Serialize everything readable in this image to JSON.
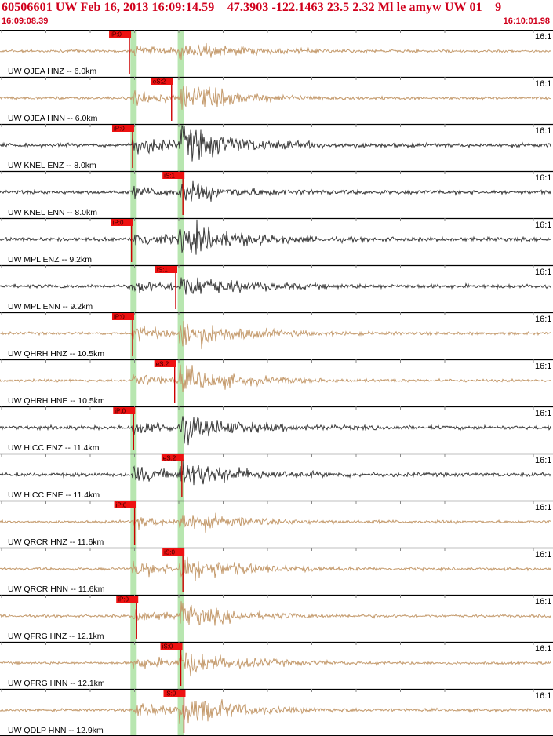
{
  "header": {
    "title": "60506601 UW Feb 16, 2013 16:09:14.59    47.3903 -122.1463 23.5 2.32 Ml le amyw UW 01    9",
    "time_start": "16:09:08.39",
    "time_end": "16:10:01.98"
  },
  "time_axis": {
    "start_sec": 0,
    "end_sec": 53.59
  },
  "colors": {
    "title": "#d0001c",
    "pick_flag": "#ee1111",
    "pick_line": "#cc0000",
    "highlight_band": "#b8e6b0",
    "trace_strong_motion": "#c49a6c",
    "trace_broadband": "#3a3a3a",
    "divider": "#000000",
    "minute_tick": "#888888"
  },
  "highlight_bands_sec": [
    13.0,
    17.6
  ],
  "right_label": "16:1",
  "traces": [
    {
      "label": "UW QJEA HNZ -- 6.0km",
      "type": "strong",
      "pick": "iP:0",
      "pick_sec": 12.6,
      "amp": 0.35
    },
    {
      "label": "UW QJEA HNN -- 6.0km",
      "type": "strong",
      "pick": "eS:2",
      "pick_sec": 16.7,
      "amp": 0.55
    },
    {
      "label": "UW KNEL ENZ -- 8.0km",
      "type": "dark",
      "pick": "iP:0",
      "pick_sec": 12.9,
      "amp": 0.7
    },
    {
      "label": "UW KNEL ENN -- 8.0km",
      "type": "dark",
      "pick": "iS:1",
      "pick_sec": 17.8,
      "amp": 0.35
    },
    {
      "label": "UW MPL ENZ -- 9.2km",
      "type": "dark",
      "pick": "iP:0",
      "pick_sec": 12.8,
      "amp": 0.6
    },
    {
      "label": "UW MPL ENN -- 9.2km",
      "type": "dark",
      "pick": "iS:1",
      "pick_sec": 17.1,
      "amp": 0.45
    },
    {
      "label": "UW QHRH HNZ -- 10.5km",
      "type": "strong",
      "pick": "iP:0",
      "pick_sec": 12.9,
      "amp": 0.6
    },
    {
      "label": "UW QHRH HNE -- 10.5km",
      "type": "strong",
      "pick": "eS:2",
      "pick_sec": 17.0,
      "amp": 0.5
    },
    {
      "label": "UW HICC ENZ -- 11.4km",
      "type": "dark",
      "pick": "iP:0",
      "pick_sec": 13.0,
      "amp": 0.5
    },
    {
      "label": "UW HICC ENE -- 11.4km",
      "type": "dark",
      "pick": "eS:2",
      "pick_sec": 17.7,
      "amp": 0.55
    },
    {
      "label": "UW QRCR HNZ -- 11.6km",
      "type": "strong",
      "pick": "iP:0",
      "pick_sec": 13.1,
      "amp": 0.4
    },
    {
      "label": "UW QRCR HNN -- 11.6km",
      "type": "strong",
      "pick": "iS:0",
      "pick_sec": 17.8,
      "amp": 0.55
    },
    {
      "label": "UW QFRG HNZ -- 12.1km",
      "type": "strong",
      "pick": "iP:0",
      "pick_sec": 13.3,
      "amp": 0.45
    },
    {
      "label": "UW QFRG HNN -- 12.1km",
      "type": "strong",
      "pick": "iS:0",
      "pick_sec": 17.6,
      "amp": 0.5
    },
    {
      "label": "UW QDLP HNN -- 12.9km",
      "type": "strong",
      "pick": "iS:0",
      "pick_sec": 17.9,
      "amp": 0.6
    }
  ]
}
